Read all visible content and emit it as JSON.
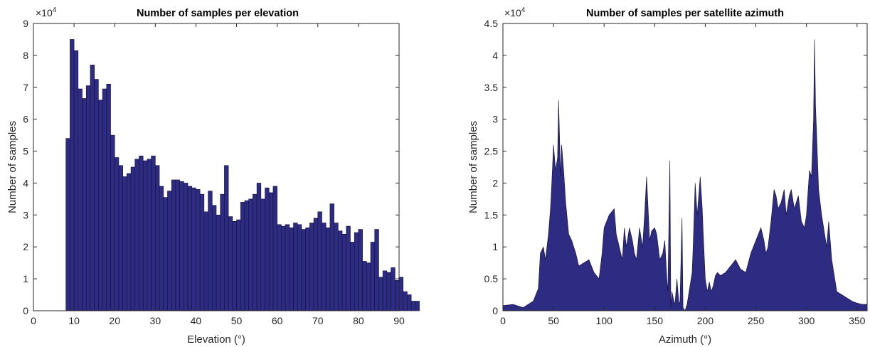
{
  "colors": {
    "bar_fill": "#2e2b82",
    "bar_edge": "#141236",
    "axis": "#262626",
    "background": "#ffffff"
  },
  "chart_data": [
    {
      "type": "bar",
      "title": "Number of samples per elevation",
      "xlabel": "Elevation (°)",
      "ylabel": "Number of samples",
      "multiplier_label": "×10",
      "multiplier_exp": "4",
      "xlim": [
        0,
        90
      ],
      "ylim": [
        0,
        9
      ],
      "xticks": [
        "0",
        "10",
        "20",
        "30",
        "40",
        "50",
        "60",
        "70",
        "80",
        "90"
      ],
      "yticks": [
        "0",
        "1",
        "2",
        "3",
        "4",
        "5",
        "6",
        "7",
        "8",
        "9"
      ],
      "bin_start": 8,
      "bin_width": 1,
      "y_unit": "×10^4",
      "values": [
        5.4,
        8.5,
        8.15,
        6.95,
        6.65,
        7.05,
        7.7,
        7.25,
        6.6,
        6.95,
        7.1,
        5.5,
        4.8,
        4.55,
        4.2,
        4.3,
        4.5,
        4.75,
        4.85,
        4.7,
        4.75,
        4.85,
        4.55,
        3.9,
        3.55,
        3.75,
        4.1,
        4.1,
        4.05,
        4.0,
        3.9,
        3.85,
        3.8,
        3.65,
        3.1,
        3.75,
        3.3,
        3.0,
        3.65,
        4.55,
        2.95,
        2.8,
        2.85,
        3.4,
        3.45,
        3.5,
        3.65,
        4.0,
        3.5,
        3.85,
        3.7,
        3.9,
        2.7,
        2.65,
        2.7,
        2.6,
        2.75,
        2.7,
        2.55,
        2.6,
        2.75,
        2.9,
        3.1,
        2.75,
        2.6,
        3.35,
        2.75,
        2.5,
        2.4,
        2.65,
        2.15,
        2.45,
        2.55,
        1.55,
        1.5,
        2.15,
        2.55,
        1.05,
        1.25,
        1.2,
        1.35,
        0.95,
        1.05,
        0.6,
        0.5,
        0.3,
        0.3
      ],
      "series": [
        {
          "name": ""
        }
      ]
    },
    {
      "type": "area",
      "title": "Number of samples per satellite azimuth",
      "xlabel": "Azimuth (°)",
      "ylabel": "Number of samples",
      "multiplier_label": "×10",
      "multiplier_exp": "4",
      "xlim": [
        0,
        360
      ],
      "ylim": [
        0,
        4.5
      ],
      "xticks": [
        "0",
        "50",
        "100",
        "150",
        "200",
        "250",
        "300",
        "350"
      ],
      "yticks": [
        "0",
        "0.5",
        "1",
        "1.5",
        "2",
        "2.5",
        "3",
        "3.5",
        "4",
        "4.5"
      ],
      "y_unit": "×10^4",
      "x": [
        0,
        10,
        20,
        30,
        35,
        37,
        40,
        42,
        45,
        47,
        48,
        50,
        52,
        54,
        55,
        57,
        58,
        60,
        62,
        65,
        68,
        72,
        75,
        80,
        85,
        90,
        95,
        98,
        100,
        105,
        110,
        112,
        115,
        118,
        120,
        122,
        125,
        128,
        130,
        132,
        135,
        138,
        140,
        142,
        145,
        147,
        150,
        152,
        155,
        158,
        160,
        162,
        163,
        165,
        166,
        167,
        169,
        170,
        172,
        174,
        175,
        177,
        178,
        180,
        182,
        185,
        187,
        188,
        190,
        192,
        195,
        197,
        198,
        200,
        202,
        204,
        206,
        208,
        210,
        212,
        215,
        220,
        225,
        230,
        235,
        240,
        245,
        250,
        255,
        258,
        260,
        262,
        265,
        268,
        270,
        272,
        275,
        278,
        280,
        283,
        285,
        288,
        290,
        292,
        295,
        298,
        300,
        303,
        305,
        307,
        308,
        309,
        310,
        312,
        315,
        318,
        320,
        322,
        325,
        328,
        330,
        335,
        340,
        345,
        350,
        355,
        360
      ],
      "values": [
        0.08,
        0.1,
        0.05,
        0.15,
        0.35,
        0.9,
        1.0,
        0.8,
        1.2,
        1.6,
        1.9,
        2.6,
        2.2,
        2.4,
        3.3,
        2.1,
        2.6,
        2.2,
        1.7,
        1.2,
        1.1,
        0.9,
        0.7,
        0.75,
        0.8,
        0.6,
        0.5,
        0.9,
        1.3,
        1.5,
        1.6,
        1.2,
        1.0,
        0.8,
        1.3,
        1.0,
        1.3,
        1.1,
        0.9,
        0.8,
        1.3,
        1.0,
        1.5,
        2.1,
        1.1,
        1.25,
        1.3,
        1.2,
        0.8,
        0.9,
        1.1,
        0.5,
        0.3,
        2.35,
        0.05,
        0.3,
        0.15,
        0.1,
        0.5,
        0.1,
        0.15,
        1.45,
        0.05,
        0.0,
        0.1,
        0.4,
        0.6,
        1.0,
        2.0,
        1.5,
        2.1,
        1.6,
        1.2,
        0.5,
        0.3,
        0.45,
        0.3,
        0.4,
        0.55,
        0.6,
        0.55,
        0.6,
        0.7,
        0.8,
        0.65,
        0.6,
        0.9,
        1.1,
        1.3,
        1.1,
        0.9,
        1.0,
        1.4,
        1.9,
        1.8,
        1.6,
        1.7,
        1.9,
        1.5,
        1.8,
        1.9,
        1.6,
        1.7,
        1.8,
        1.4,
        1.3,
        1.5,
        2.2,
        2.1,
        3.0,
        4.25,
        3.2,
        2.8,
        1.9,
        1.5,
        1.2,
        1.0,
        1.4,
        0.8,
        0.5,
        0.3,
        0.25,
        0.2,
        0.15,
        0.12,
        0.1,
        0.1
      ],
      "series": [
        {
          "name": ""
        }
      ]
    }
  ]
}
